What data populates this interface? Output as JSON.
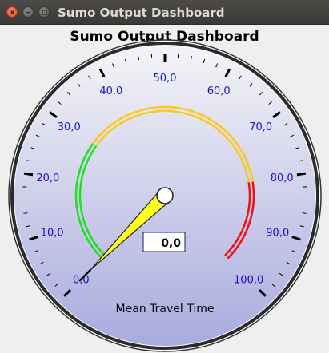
{
  "window": {
    "title": "Sumo Output Dashboard",
    "buttons": [
      {
        "name": "close-button",
        "icon": "close-icon"
      },
      {
        "name": "minimize-button",
        "icon": "minimize-icon"
      },
      {
        "name": "maximize-button",
        "icon": "maximize-icon"
      }
    ]
  },
  "dashboard": {
    "title": "Sumo Output Dashboard"
  },
  "gauge": {
    "label": "Mean Travel Time",
    "value_display": "0,0",
    "value": 0,
    "min": 0,
    "max": 100,
    "major_step": 10,
    "minor_per_major": 5,
    "tick_labels": [
      "0,0",
      "10,0",
      "20,0",
      "30,0",
      "40,0",
      "50,0",
      "60,0",
      "70,0",
      "80,0",
      "90,0",
      "100,0"
    ],
    "colors": {
      "dial_top": "#f4f4f7",
      "dial_bottom": "#a9abdf",
      "tick_label": "#1515c8",
      "needle": "#ffff22",
      "range_green": "#22dd22",
      "range_yellow": "#ffc81e",
      "range_red": "#ee1111"
    },
    "ranges": [
      {
        "name": "green",
        "from": 0,
        "to": 30
      },
      {
        "name": "yellow",
        "from": 30,
        "to": 80
      },
      {
        "name": "red",
        "from": 80,
        "to": 100
      }
    ]
  }
}
